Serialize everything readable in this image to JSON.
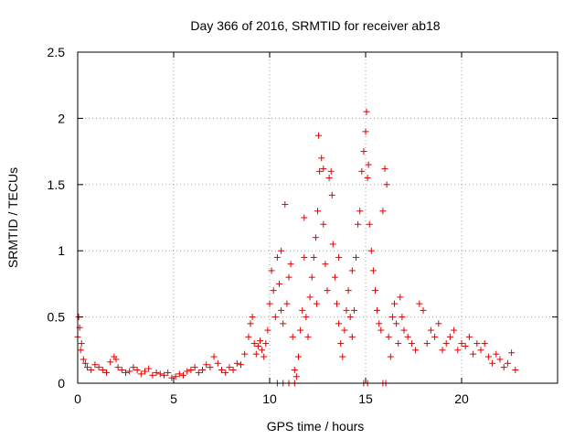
{
  "chart_data": {
    "type": "scatter",
    "title": "Day 366 of 2016, SRMTID for receiver ab18",
    "xlabel": "GPS time / hours",
    "ylabel": "SRMTID / TECUs",
    "xlim": [
      0,
      25
    ],
    "ylim": [
      0,
      2.5
    ],
    "xticks": [
      0,
      5,
      10,
      15,
      20
    ],
    "yticks": [
      0,
      0.5,
      1,
      1.5,
      2,
      2.5
    ],
    "ytick_labels": [
      "0",
      "0.5",
      "1",
      "1.5",
      "2",
      "2.5"
    ],
    "grid": true,
    "marker": "+",
    "color": "#e00000",
    "series": [
      {
        "name": "SRMTID",
        "x": [
          0.0,
          0.05,
          0.1,
          0.15,
          0.2,
          0.3,
          0.4,
          0.5,
          0.7,
          0.9,
          1.1,
          1.3,
          1.5,
          1.7,
          1.9,
          2.0,
          2.1,
          2.3,
          2.5,
          2.7,
          2.9,
          3.1,
          3.3,
          3.5,
          3.7,
          3.9,
          4.1,
          4.3,
          4.5,
          4.7,
          4.9,
          5.1,
          5.3,
          5.5,
          5.7,
          5.9,
          6.1,
          6.3,
          6.5,
          6.7,
          6.9,
          7.1,
          7.3,
          7.5,
          7.7,
          7.9,
          8.1,
          8.3,
          8.5,
          8.7,
          8.9,
          9.0,
          9.1,
          9.2,
          9.3,
          9.4,
          9.5,
          9.6,
          9.7,
          9.8,
          9.9,
          10.0,
          10.1,
          10.2,
          10.3,
          10.4,
          10.5,
          10.6,
          10.7,
          10.8,
          10.9,
          11.0,
          11.1,
          11.2,
          11.3,
          11.4,
          11.5,
          11.6,
          11.7,
          11.8,
          11.9,
          12.0,
          12.1,
          12.2,
          12.3,
          12.4,
          12.5,
          12.55,
          12.6,
          12.7,
          12.8,
          12.9,
          13.0,
          13.1,
          13.2,
          13.25,
          13.3,
          13.4,
          13.5,
          13.6,
          13.7,
          13.8,
          13.9,
          14.0,
          14.1,
          14.2,
          14.3,
          14.4,
          14.5,
          14.6,
          14.7,
          14.8,
          14.9,
          15.0,
          15.05,
          15.1,
          15.2,
          15.3,
          15.4,
          15.5,
          15.6,
          15.7,
          15.8,
          15.9,
          16.0,
          16.1,
          16.2,
          16.3,
          16.4,
          16.5,
          16.6,
          16.7,
          16.8,
          16.9,
          17.0,
          17.2,
          17.4,
          17.6,
          17.8,
          18.0,
          18.2,
          18.4,
          18.6,
          18.8,
          19.0,
          19.2,
          19.4,
          19.6,
          19.8,
          20.0,
          20.2,
          20.4,
          20.6,
          20.8,
          21.0,
          21.2,
          21.4,
          21.6,
          21.8,
          22.0,
          22.2,
          22.4,
          22.6,
          22.8,
          10.4,
          10.7,
          11.0,
          11.3,
          14.9,
          15.1,
          15.9,
          16.05,
          12.8,
          13.6,
          14.3,
          10.6,
          11.8,
          12.45,
          15.15
        ],
        "y": [
          0.35,
          0.5,
          0.42,
          0.25,
          0.3,
          0.18,
          0.15,
          0.12,
          0.1,
          0.14,
          0.12,
          0.1,
          0.08,
          0.16,
          0.2,
          0.18,
          0.12,
          0.1,
          0.08,
          0.09,
          0.12,
          0.1,
          0.07,
          0.09,
          0.11,
          0.06,
          0.08,
          0.07,
          0.06,
          0.08,
          0.04,
          0.05,
          0.07,
          0.06,
          0.09,
          0.1,
          0.12,
          0.08,
          0.1,
          0.14,
          0.12,
          0.2,
          0.15,
          0.1,
          0.08,
          0.12,
          0.1,
          0.15,
          0.14,
          0.22,
          0.35,
          0.45,
          0.5,
          0.3,
          0.22,
          0.28,
          0.32,
          0.25,
          0.2,
          0.3,
          0.4,
          0.6,
          0.85,
          0.7,
          0.5,
          0.95,
          0.75,
          0.55,
          0.45,
          1.35,
          0.6,
          0.8,
          0.9,
          0.35,
          0.1,
          0.05,
          0.2,
          0.4,
          0.55,
          0.95,
          0.5,
          0.35,
          0.65,
          0.8,
          0.95,
          1.1,
          1.3,
          1.87,
          1.6,
          1.7,
          1.2,
          0.9,
          0.7,
          1.55,
          1.6,
          1.42,
          1.05,
          0.8,
          0.6,
          0.45,
          0.3,
          0.2,
          0.4,
          0.55,
          0.7,
          0.5,
          0.35,
          0.55,
          0.95,
          1.2,
          1.3,
          1.6,
          1.75,
          1.9,
          2.05,
          1.55,
          1.2,
          1.0,
          0.85,
          0.7,
          0.55,
          0.45,
          0.4,
          1.3,
          1.62,
          1.5,
          0.35,
          0.2,
          0.5,
          0.6,
          0.45,
          0.3,
          0.65,
          0.5,
          0.4,
          0.35,
          0.3,
          0.25,
          0.6,
          0.55,
          0.3,
          0.4,
          0.35,
          0.45,
          0.25,
          0.3,
          0.35,
          0.4,
          0.25,
          0.3,
          0.28,
          0.35,
          0.22,
          0.3,
          0.25,
          0.3,
          0.2,
          0.15,
          0.22,
          0.18,
          0.12,
          0.15,
          0.23,
          0.1,
          0.0,
          0.0,
          0.0,
          0.0,
          0.0,
          0.0,
          0.0,
          0.0,
          1.62,
          0.95,
          0.85,
          1.0,
          1.25,
          0.6,
          1.65
        ]
      }
    ]
  }
}
